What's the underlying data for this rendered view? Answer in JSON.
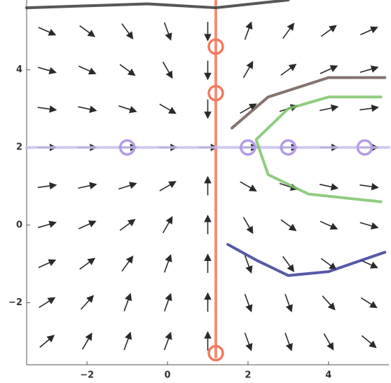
{
  "chart_data": {
    "type": "quiver",
    "xlim": [
      -3.5,
      5.5
    ],
    "ylim": [
      -3.6,
      5.8
    ],
    "xticks": [
      {
        "value": -2,
        "label": "−2"
      },
      0,
      2,
      4
    ],
    "yticks": [
      {
        "value": -2,
        "label": "−2"
      },
      0,
      2,
      4
    ],
    "x": [
      -3,
      -2,
      -1,
      0,
      1,
      2,
      3,
      4,
      5
    ],
    "y": [
      5,
      4,
      3,
      2,
      1,
      0,
      -1,
      -2,
      -3
    ],
    "angles": [
      [
        -24,
        -36,
        -54,
        -70,
        -90,
        70,
        54,
        36,
        24
      ],
      [
        -16,
        -24,
        -36,
        -60,
        -90,
        60,
        36,
        24,
        16
      ],
      [
        -8,
        -12,
        -18,
        -30,
        -90,
        30,
        18,
        12,
        8
      ],
      [
        0,
        0,
        0,
        0,
        0,
        0,
        0,
        0,
        0
      ],
      [
        8,
        12,
        18,
        30,
        90,
        -30,
        -18,
        -12,
        -8
      ],
      [
        16,
        24,
        36,
        60,
        90,
        -60,
        -36,
        -24,
        -16
      ],
      [
        24,
        36,
        54,
        70,
        90,
        -70,
        -54,
        -36,
        -24
      ],
      [
        32,
        48,
        70,
        70,
        90,
        -70,
        -70,
        -48,
        -32
      ],
      [
        40,
        60,
        70,
        70,
        90,
        -70,
        -70,
        -60,
        -40
      ]
    ],
    "arrow_color": "#2a2a2a",
    "curves": [
      {
        "color": "#f07a5e",
        "x": [
          1.2,
          1.2
        ],
        "y": [
          -3.4,
          5.8
        ]
      },
      {
        "color": "#c9bff0",
        "x": [
          -3.5,
          5.5
        ],
        "y": [
          2,
          2
        ]
      },
      {
        "color": "#7cc46a",
        "x": [
          5.3,
          4,
          3,
          2.2,
          2.5,
          3.5,
          5.3
        ],
        "y": [
          3.3,
          3.3,
          3,
          2.2,
          1.3,
          0.8,
          0.6
        ]
      },
      {
        "color": "#6e5a55",
        "x": [
          1.6,
          2.5,
          4,
          5.4
        ],
        "y": [
          2.5,
          3.3,
          3.8,
          3.8
        ]
      },
      {
        "color": "#3b3b9a",
        "x": [
          1.5,
          2.2,
          3,
          4,
          5.4
        ],
        "y": [
          -0.5,
          -0.9,
          -1.3,
          -1.2,
          -0.7
        ]
      },
      {
        "color": "#3a3a3a",
        "x": [
          -3.5,
          -0.5,
          1.2,
          3
        ],
        "y": [
          5.6,
          5.7,
          5.6,
          5.8
        ]
      }
    ],
    "circles": [
      {
        "color": "#f07a5e",
        "x": [
          1.2,
          1.2,
          1.2
        ],
        "y": [
          4.6,
          3.4,
          -3.3
        ]
      },
      {
        "color": "#b39be8",
        "x": [
          -1,
          2,
          3,
          4.9
        ],
        "y": [
          2,
          2,
          2,
          2
        ]
      }
    ]
  }
}
